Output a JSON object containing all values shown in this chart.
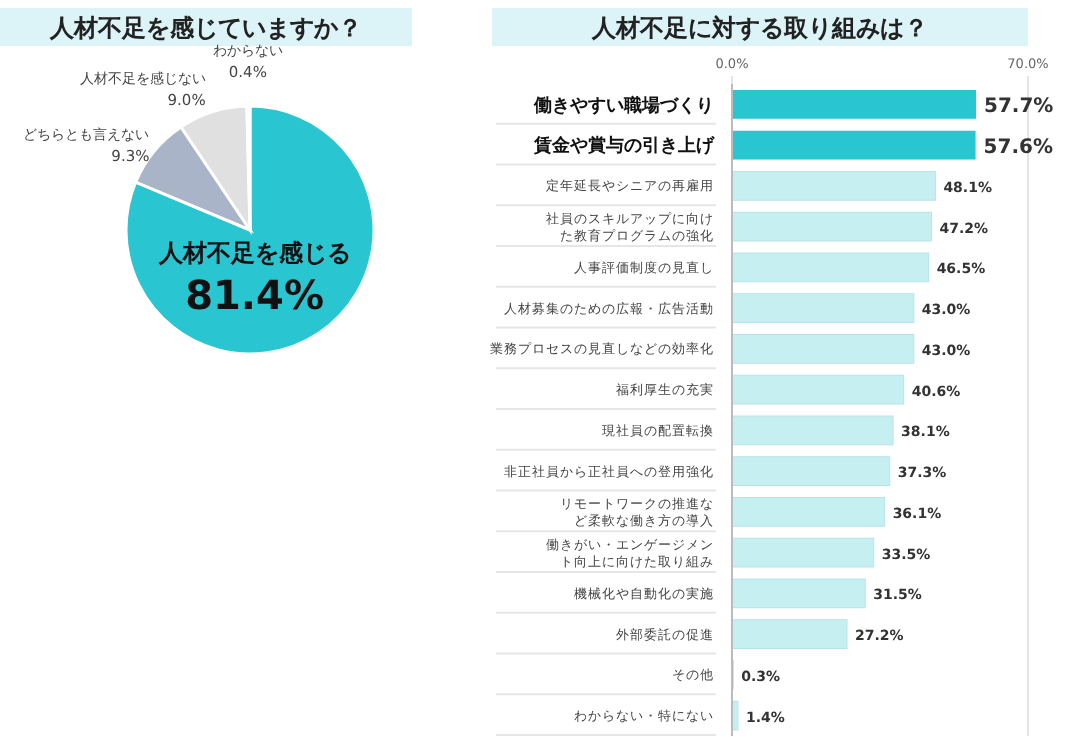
{
  "chart_data": [
    {
      "type": "pie",
      "title": "人材不足を感じていますか？",
      "categories": [
        "人材不足を感じる",
        "どちらとも言えない",
        "人材不足を感じない",
        "わからない"
      ],
      "values": [
        81.4,
        9.3,
        9.0,
        0.4
      ],
      "colors": [
        "#29c6d1",
        "#a9b4c8",
        "#e0e0e0",
        "#f0f0f0"
      ],
      "value_labels": [
        "81.4%",
        "9.3%",
        "9.0%",
        "0.4%"
      ]
    },
    {
      "type": "bar",
      "orientation": "horizontal",
      "title": "人材不足に対する取り組みは？",
      "categories": [
        "働きやすい職場づくり",
        "賃金や賞与の引き上げ",
        "定年延長やシニアの再雇用",
        "社員のスキルアップに向けた教育プログラムの強化",
        "人事評価制度の見直し",
        "人材募集のための広報・広告活動",
        "業務プロセスの見直しなどの効率化",
        "福利厚生の充実",
        "現社員の配置転換",
        "非正社員から正社員への登用強化",
        "リモートワークの推進など柔軟な働き方の導入",
        "働きがい・エンゲージメント向上に向けた取り組み",
        "機械化や自動化の実施",
        "外部委託の促進",
        "その他",
        "わからない・特にない"
      ],
      "values": [
        57.7,
        57.6,
        48.1,
        47.2,
        46.5,
        43.0,
        43.0,
        40.6,
        38.1,
        37.3,
        36.1,
        33.5,
        31.5,
        27.2,
        0.3,
        1.4
      ],
      "colors": [
        "#29c6d1",
        "#29c6d1",
        "#c6eff2",
        "#c6eff2",
        "#c6eff2",
        "#c6eff2",
        "#c6eff2",
        "#c6eff2",
        "#c6eff2",
        "#c6eff2",
        "#c6eff2",
        "#c6eff2",
        "#c6eff2",
        "#c6eff2",
        "#c6eff2",
        "#c6eff2"
      ],
      "value_labels": [
        "57.7%",
        "57.6%",
        "48.1%",
        "47.2%",
        "46.5%",
        "43.0%",
        "43.0%",
        "40.6%",
        "38.1%",
        "37.3%",
        "36.1%",
        "33.5%",
        "31.5%",
        "27.2%",
        "0.3%",
        "1.4%"
      ],
      "xlim": [
        0,
        70
      ],
      "xticks": [
        {
          "value": 0,
          "label": "0.0%"
        },
        {
          "value": 70,
          "label": "70.0%"
        }
      ],
      "grid": "x"
    }
  ]
}
